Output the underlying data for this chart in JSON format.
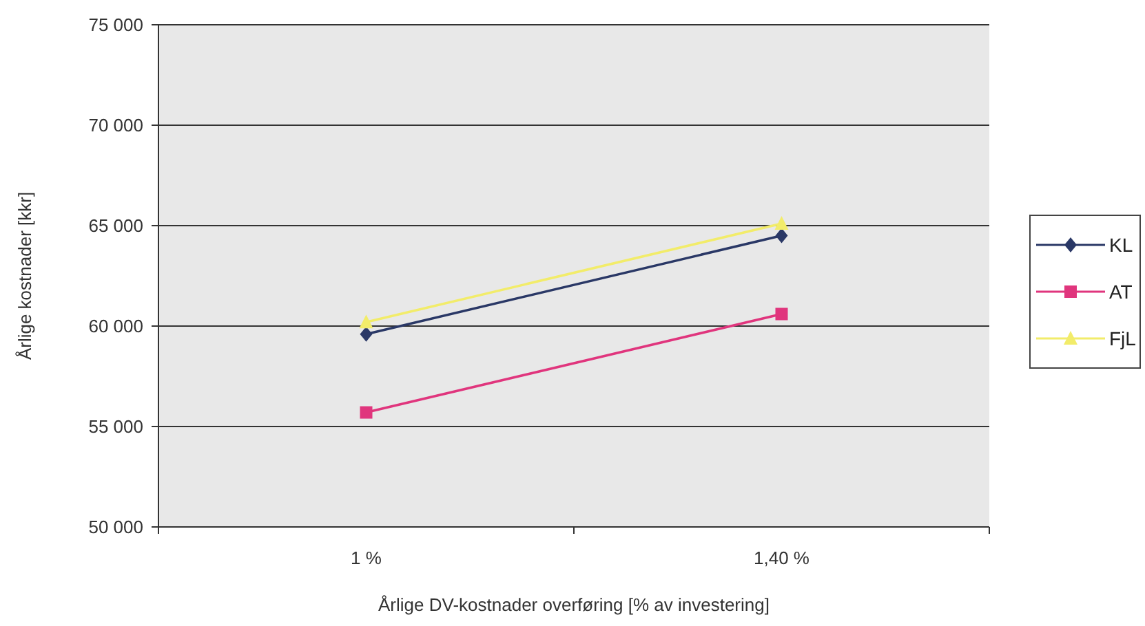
{
  "chart_data": {
    "type": "line",
    "xlabel": "Årlige DV-kostnader overføring [% av investering]",
    "ylabel": "Årlige kostnader [kkr]",
    "categories": [
      "1 %",
      "1,40 %"
    ],
    "series": [
      {
        "name": "KL",
        "color": "#2a3866",
        "marker": "diamond",
        "values": [
          59600,
          64500
        ]
      },
      {
        "name": "AT",
        "color": "#e0357d",
        "marker": "square",
        "values": [
          55700,
          60600
        ]
      },
      {
        "name": "FjL",
        "color": "#f2ec6a",
        "marker": "triangle",
        "values": [
          60200,
          65100
        ]
      }
    ],
    "ylim": [
      50000,
      75000
    ],
    "yticks": [
      {
        "value": 50000,
        "label": "50 000"
      },
      {
        "value": 55000,
        "label": "55 000"
      },
      {
        "value": 60000,
        "label": "60 000"
      },
      {
        "value": 65000,
        "label": "65 000"
      },
      {
        "value": 70000,
        "label": "70 000"
      },
      {
        "value": 75000,
        "label": "75 000"
      }
    ],
    "grid": "y",
    "legend": "right"
  }
}
